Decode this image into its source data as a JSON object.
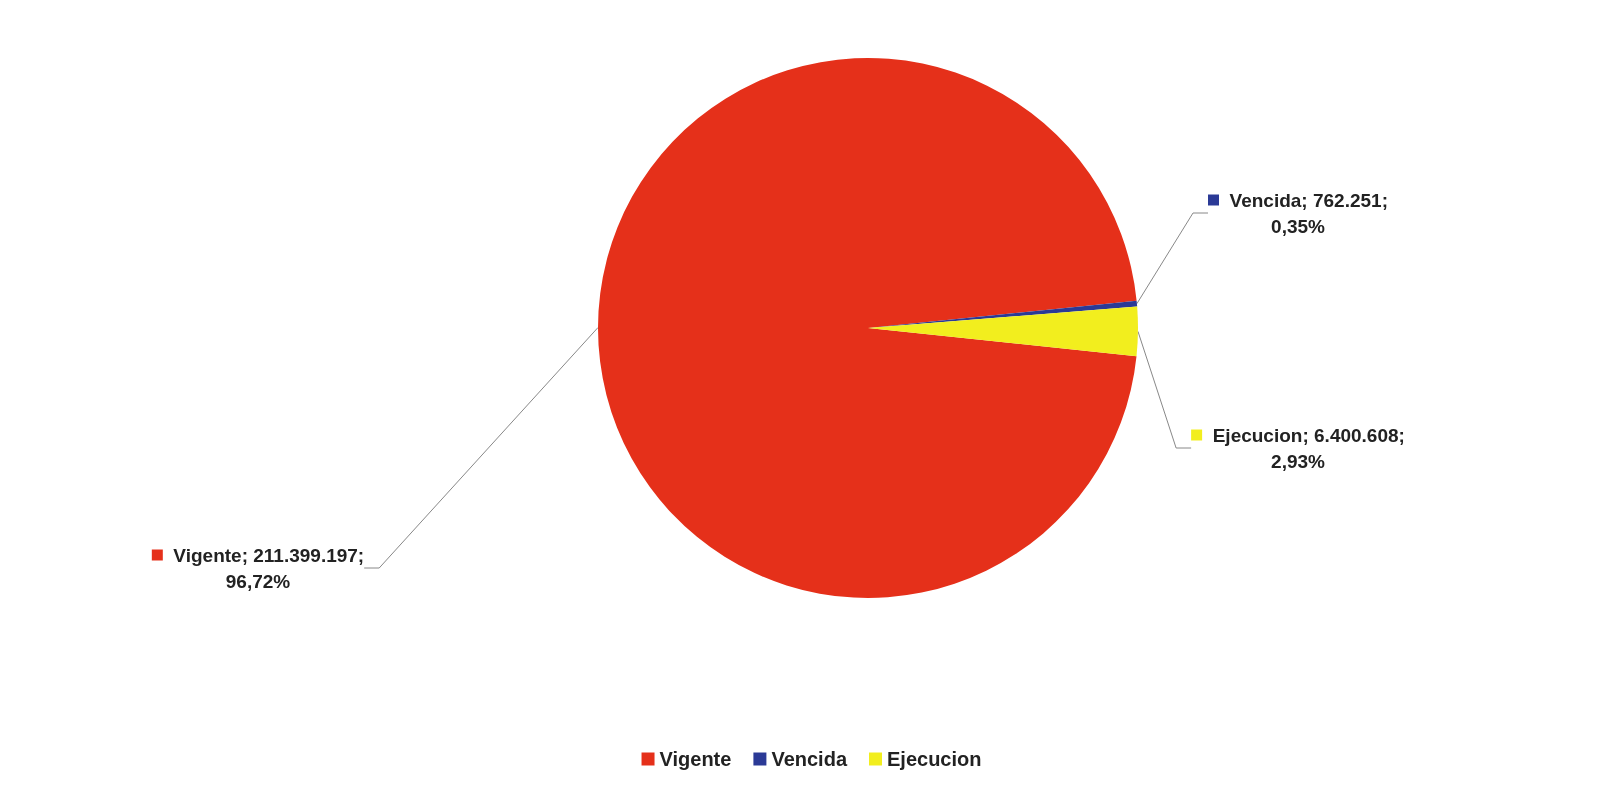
{
  "chart_data": {
    "type": "pie",
    "categories": [
      "Vigente",
      "Vencida",
      "Ejecucion"
    ],
    "values": [
      211399197,
      762251,
      6400608
    ],
    "colors": [
      "#e5301a",
      "#2b3a96",
      "#f2ee1e"
    ],
    "value_labels": [
      "Vigente; 211.399.197; 96,72%",
      "Vencida; 762.251; 0,35%",
      "Ejecucion; 6.400.608; 2,93%"
    ],
    "legend": "bottom"
  }
}
